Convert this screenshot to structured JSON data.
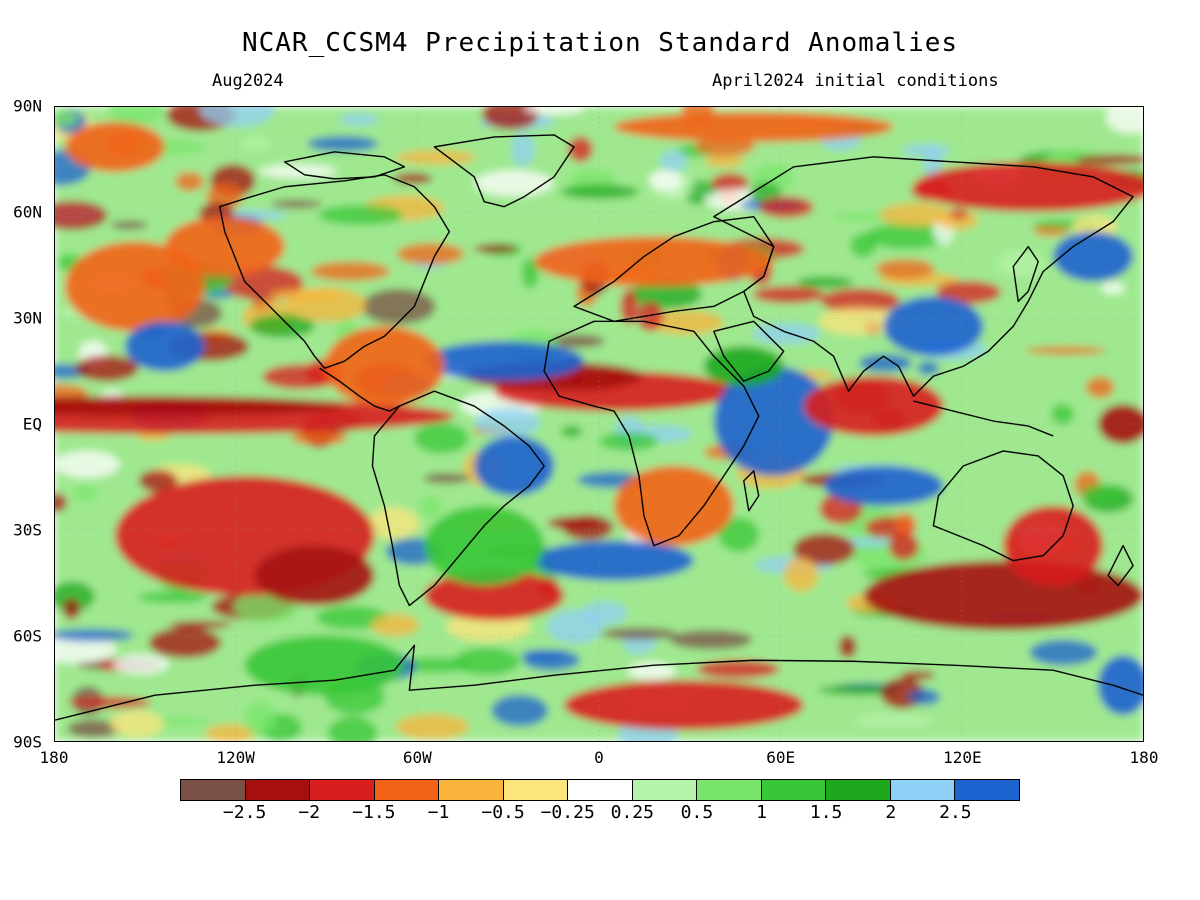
{
  "title": "NCAR_CCSM4 Precipitation Standard Anomalies",
  "subtitle_left": "Aug2024",
  "subtitle_right": "April2024 initial conditions",
  "lat_labels": [
    "90N",
    "60N",
    "30N",
    "EQ",
    "30S",
    "60S",
    "90S"
  ],
  "lon_labels": [
    "180",
    "120W",
    "60W",
    "0",
    "60E",
    "120E",
    "180"
  ],
  "colorbar": {
    "colors": [
      "#7a5045",
      "#a50f0f",
      "#d81e1e",
      "#f26318",
      "#f9b43c",
      "#fde57e",
      "#ffffff",
      "#b6f3aa",
      "#78e56a",
      "#37c737",
      "#1ea81e",
      "#8fd0f6",
      "#1c63cf"
    ],
    "labels": [
      "−2.5",
      "−2",
      "−1.5",
      "−1",
      "−0.5",
      "−0.25",
      "0.25",
      "0.5",
      "1",
      "1.5",
      "2",
      "2.5"
    ]
  },
  "anomaly_features": [
    {
      "name": "equatorial-pacific-dry",
      "level": -1.5
    },
    {
      "name": "tropical-atlantic-dry",
      "level": -1.5
    },
    {
      "name": "east-africa-indian-ocean-wet",
      "level": 2.5
    },
    {
      "name": "caribbean-atlantic-wet",
      "level": 2.5
    },
    {
      "name": "south-pacific-dry",
      "level": -2
    },
    {
      "name": "south-indian-ocean-dry",
      "level": -2
    },
    {
      "name": "antarctic-atlantic-dry",
      "level": -2
    },
    {
      "name": "india-wet",
      "level": 2.5
    },
    {
      "name": "europe-dry",
      "level": -1.5
    },
    {
      "name": "north-pacific-dry",
      "level": -1.5
    }
  ]
}
